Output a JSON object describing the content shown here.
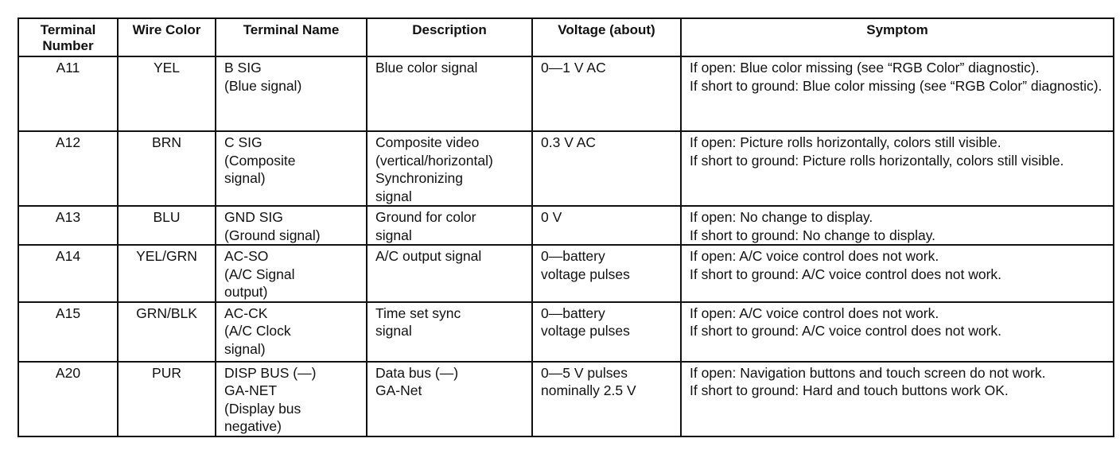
{
  "headers": [
    "Terminal\nNumber",
    "Wire Color",
    "Terminal Name",
    "Description",
    "Voltage (about)",
    "Symptom"
  ],
  "rows": [
    {
      "number": "A11",
      "wire": "YEL",
      "name": "B SIG\n(Blue signal)",
      "description": "Blue color signal",
      "voltage": "0—1 V AC",
      "symptom": "If open: Blue color missing (see “RGB Color” diagnostic).\nIf short to ground: Blue color missing (see “RGB Color” diagnostic)."
    },
    {
      "number": "A12",
      "wire": "BRN",
      "name": "C SIG\n(Composite\nsignal)",
      "description": "Composite video\n(vertical/horizontal)\nSynchronizing\nsignal",
      "voltage": "0.3 V AC",
      "symptom": "If open: Picture rolls horizontally, colors still visible.\nIf short to ground: Picture rolls horizontally, colors still visible."
    },
    {
      "number": "A13",
      "wire": "BLU",
      "name": "GND SIG\n(Ground signal)",
      "description": "Ground for color\nsignal",
      "voltage": "0 V",
      "symptom": "If open: No change to display.\nIf short to ground: No change to display."
    },
    {
      "number": "A14",
      "wire": "YEL/GRN",
      "name": "AC-SO\n(A/C Signal\noutput)",
      "description": "A/C output signal",
      "voltage": "0—battery\nvoltage pulses",
      "symptom": "If open: A/C voice control does not work.\nIf short to ground: A/C voice control does not work."
    },
    {
      "number": "A15",
      "wire": "GRN/BLK",
      "name": "AC-CK\n(A/C Clock\nsignal)",
      "description": "Time set sync\nsignal",
      "voltage": "0—battery\nvoltage pulses",
      "symptom": "If open: A/C voice control does not work.\nIf short to ground: A/C voice control does not work."
    },
    {
      "number": "A20",
      "wire": "PUR",
      "name": "DISP BUS (—)\nGA-NET\n(Display bus\nnegative)",
      "description": "Data bus (—)\nGA-Net",
      "voltage": "0—5 V pulses\nnominally 2.5 V",
      "symptom": "If open: Navigation buttons and touch screen do not work.\nIf short to ground: Hard and touch buttons work OK."
    }
  ]
}
